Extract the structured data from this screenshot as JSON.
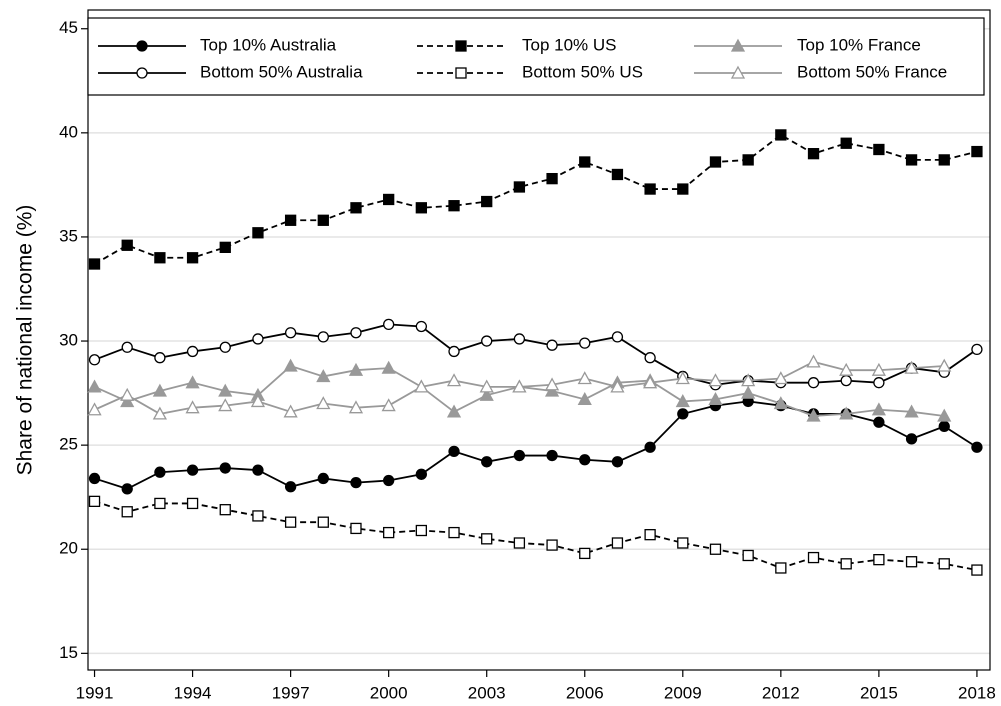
{
  "chart_data": {
    "type": "line",
    "y_label": "Share of national income (%)",
    "x": [
      1991,
      1992,
      1993,
      1994,
      1995,
      1996,
      1997,
      1998,
      1999,
      2000,
      2001,
      2002,
      2003,
      2004,
      2005,
      2006,
      2007,
      2008,
      2009,
      2010,
      2011,
      2012,
      2013,
      2014,
      2015,
      2016,
      2017,
      2018
    ],
    "xlim": [
      1990.8,
      2018.4
    ],
    "xticks": [
      1991,
      1994,
      1997,
      2000,
      2003,
      2006,
      2009,
      2012,
      2015,
      2018
    ],
    "ylim": [
      14.2,
      45.9
    ],
    "yticks": [
      15,
      20,
      25,
      30,
      35,
      40,
      45
    ],
    "grid": true,
    "legend": "top",
    "series": [
      {
        "name": "Top 10% Australia",
        "color": "#000000",
        "dash": "solid",
        "marker": "circle",
        "filled": true,
        "values": [
          23.4,
          22.9,
          23.7,
          23.8,
          23.9,
          23.8,
          23.0,
          23.4,
          23.2,
          23.3,
          23.6,
          24.7,
          24.2,
          24.5,
          24.5,
          24.3,
          24.2,
          24.9,
          26.5,
          26.9,
          27.1,
          26.9,
          26.5,
          26.5,
          26.1,
          25.3,
          25.9,
          24.9
        ]
      },
      {
        "name": "Bottom 50% Australia",
        "color": "#000000",
        "dash": "solid",
        "marker": "circle",
        "filled": false,
        "values": [
          29.1,
          29.7,
          29.2,
          29.5,
          29.7,
          30.1,
          30.4,
          30.2,
          30.4,
          30.8,
          30.7,
          29.5,
          30.0,
          30.1,
          29.8,
          29.9,
          30.2,
          29.2,
          28.3,
          27.9,
          28.1,
          28.0,
          28.0,
          28.1,
          28.0,
          28.7,
          28.5,
          29.6
        ]
      },
      {
        "name": "Top 10% US",
        "color": "#000000",
        "dash": "dashed",
        "marker": "square",
        "filled": true,
        "values": [
          33.7,
          34.6,
          34.0,
          34.0,
          34.5,
          35.2,
          35.8,
          35.8,
          36.4,
          36.8,
          36.4,
          36.5,
          36.7,
          37.4,
          37.8,
          38.6,
          38.0,
          37.3,
          37.3,
          38.6,
          38.7,
          39.9,
          39.0,
          39.5,
          39.2,
          38.7,
          38.7,
          39.1
        ]
      },
      {
        "name": "Bottom 50% US",
        "color": "#000000",
        "dash": "dashed",
        "marker": "square",
        "filled": false,
        "values": [
          22.3,
          21.8,
          22.2,
          22.2,
          21.9,
          21.6,
          21.3,
          21.3,
          21.0,
          20.8,
          20.9,
          20.8,
          20.5,
          20.3,
          20.2,
          19.8,
          20.3,
          20.7,
          20.3,
          20.0,
          19.7,
          19.1,
          19.6,
          19.3,
          19.5,
          19.4,
          19.3,
          19.0
        ]
      },
      {
        "name": "Top 10% France",
        "color": "#999999",
        "dash": "solid",
        "marker": "triangle",
        "filled": true,
        "values": [
          27.8,
          27.1,
          27.6,
          28.0,
          27.6,
          27.4,
          28.8,
          28.3,
          28.6,
          28.7,
          27.8,
          26.6,
          27.4,
          27.8,
          27.6,
          27.2,
          28.0,
          28.1,
          27.1,
          27.2,
          27.5,
          27.0,
          26.4,
          26.5,
          26.7,
          26.6,
          26.4,
          null
        ]
      },
      {
        "name": "Bottom 50% France",
        "color": "#999999",
        "dash": "solid",
        "marker": "triangle",
        "filled": false,
        "values": [
          26.7,
          27.4,
          26.5,
          26.8,
          26.9,
          27.1,
          26.6,
          27.0,
          26.8,
          26.9,
          27.8,
          28.1,
          27.8,
          27.8,
          27.9,
          28.2,
          27.8,
          28.0,
          28.2,
          28.1,
          28.1,
          28.2,
          29.0,
          28.6,
          28.6,
          28.7,
          28.8,
          null
        ]
      }
    ]
  }
}
